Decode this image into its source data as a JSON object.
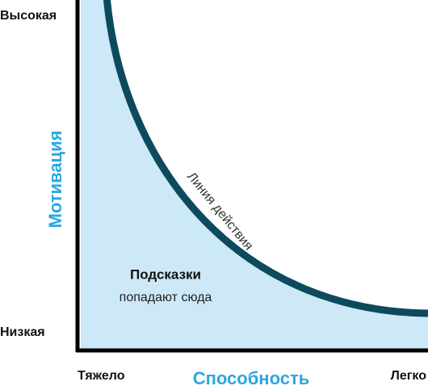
{
  "y_axis": {
    "title": "Мотивация",
    "high": "Высокая",
    "low": "Низкая"
  },
  "x_axis": {
    "title": "Способность",
    "low": "Тяжело",
    "high": "Легко"
  },
  "curve": {
    "label": "Линия действия"
  },
  "zone": {
    "title": "Подсказки",
    "subtitle": "попадают сюда"
  }
}
